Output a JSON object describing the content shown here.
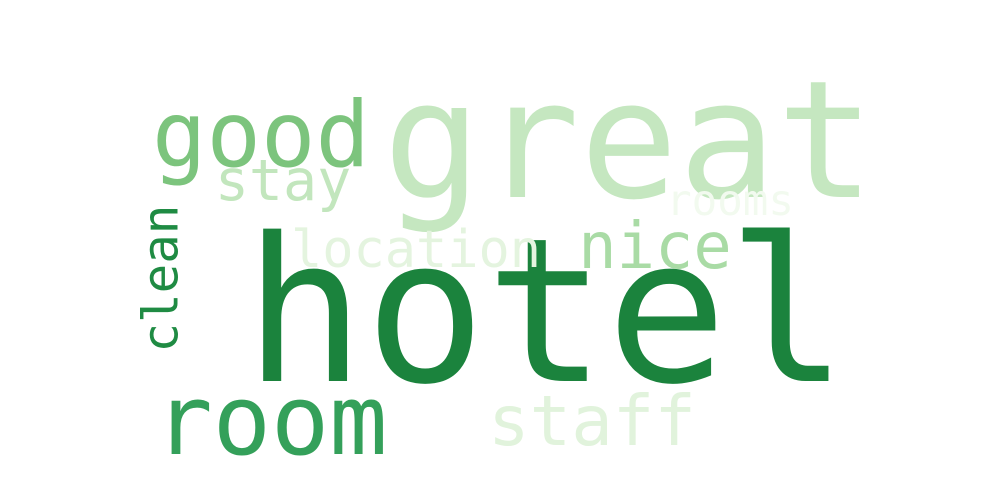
{
  "words": [
    {
      "text": "hotel",
      "color": "#1b833d"
    },
    {
      "text": "great",
      "color": "#c5e7c0"
    },
    {
      "text": "good",
      "color": "#7cc47d"
    },
    {
      "text": "room",
      "color": "#34a05a"
    },
    {
      "text": "clean",
      "color": "#1f8b43"
    },
    {
      "text": "nice",
      "color": "#a9dba5"
    },
    {
      "text": "stay",
      "color": "#c2e6bd"
    },
    {
      "text": "staff",
      "color": "#e1f3dc"
    },
    {
      "text": "location",
      "color": "#e4f4df"
    },
    {
      "text": "rooms",
      "color": "#f2faef"
    }
  ]
}
